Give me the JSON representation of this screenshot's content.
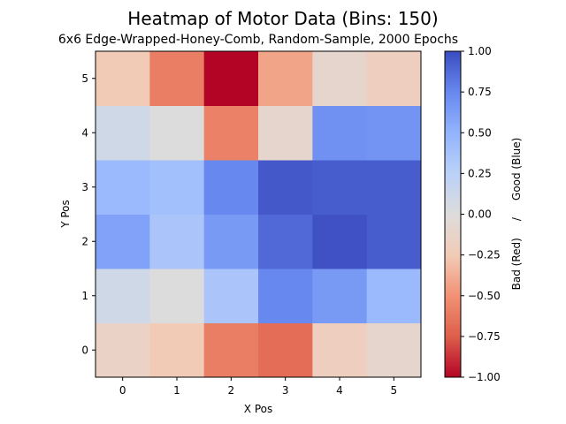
{
  "chart_data": {
    "type": "heatmap",
    "title": "Heatmap of Motor Data (Bins: 150)",
    "subtitle": "6x6 Edge-Wrapped-Honey-Comb, Random-Sample, 2000 Epochs",
    "xlabel": "X Pos",
    "ylabel": "Y Pos",
    "x_ticks": [
      "0",
      "1",
      "2",
      "3",
      "4",
      "5"
    ],
    "y_ticks": [
      "0",
      "1",
      "2",
      "3",
      "4",
      "5"
    ],
    "colorbar_label": "Bad (Red)     /     Good (Blue)",
    "colorbar_ticks": [
      "−1.00",
      "−0.75",
      "−0.50",
      "−0.25",
      "0.00",
      "0.25",
      "0.50",
      "0.75",
      "1.00"
    ],
    "colorbar_tick_values": [
      -1.0,
      -0.75,
      -0.5,
      -0.25,
      0.0,
      0.25,
      0.5,
      0.75,
      1.0
    ],
    "colormap": "coolwarm (reversed: red = -1, blue = +1)",
    "vmin": -1.0,
    "vmax": 1.0,
    "rows_y": [
      0,
      1,
      2,
      3,
      4,
      5
    ],
    "values": [
      [
        -0.15,
        -0.25,
        -0.6,
        -0.68,
        -0.2,
        -0.1
      ],
      [
        0.1,
        0.0,
        0.35,
        0.75,
        0.65,
        0.45
      ],
      [
        0.6,
        0.35,
        0.65,
        0.88,
        0.98,
        0.93
      ],
      [
        0.45,
        0.4,
        0.75,
        0.95,
        0.93,
        0.93
      ],
      [
        0.1,
        0.0,
        -0.58,
        -0.1,
        0.7,
        0.68
      ],
      [
        -0.25,
        -0.6,
        -1.0,
        -0.42,
        -0.1,
        -0.2
      ]
    ]
  }
}
